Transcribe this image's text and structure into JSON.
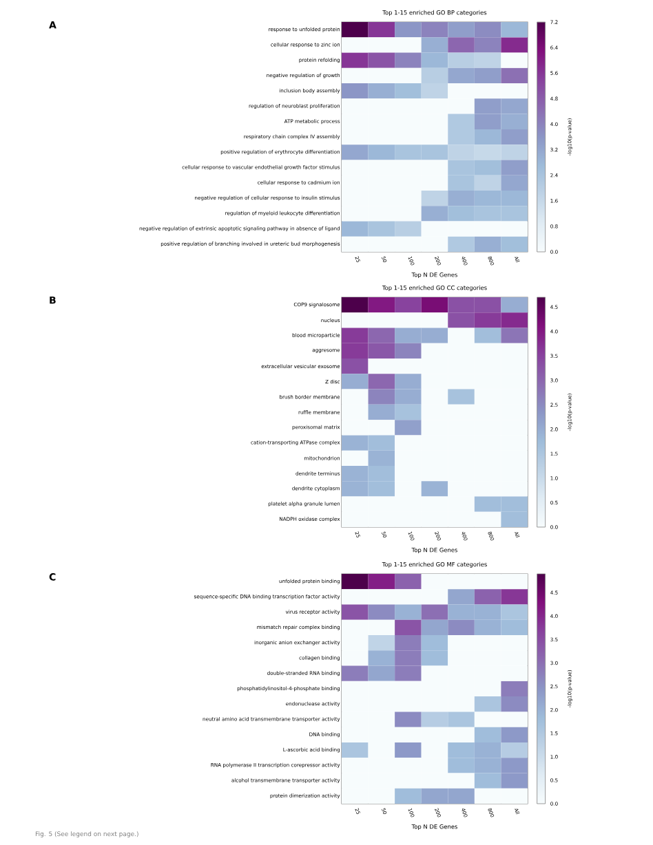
{
  "chart_data": [
    {
      "type": "heatmap",
      "title": "Top 1-15 enriched GO BP categories",
      "xlabel": "Top N DE Genes",
      "clabel": "-log10(p-value)",
      "annotations": [
        "A"
      ],
      "categories": [
        "25",
        "50",
        "100",
        "200",
        "400",
        "800",
        "All"
      ],
      "y_categories": [
        "response to unfolded protein",
        "cellular response to zinc ion",
        "protein refolding",
        "negative regulation of growth",
        "inclusion body assembly",
        "regulation of neuroblast proliferation",
        "ATP metabolic process",
        "respiratory chain complex IV assembly",
        "positive regulation of erythrocyte differentiation",
        "cellular response to vascular endothelial growth factor stimulus",
        "cellular response to cadmium ion",
        "negative regulation of cellular response to insulin stimulus",
        "regulation of myeloid leukocyte differentiation",
        "negative regulation of extrinsic apoptotic signaling pathway in absence of ligand",
        "positive regulation of branching involved in ureteric bud morphogenesis"
      ],
      "cells": [
        [
          7.2,
          5.6,
          3.6,
          4.0,
          3.4,
          3.8,
          2.8
        ],
        [
          0,
          0,
          0,
          3.0,
          4.6,
          4.0,
          5.8
        ],
        [
          5.6,
          5.0,
          4.0,
          2.8,
          2.0,
          1.8,
          0
        ],
        [
          0,
          0,
          0,
          2.0,
          3.2,
          3.4,
          4.4
        ],
        [
          3.6,
          3.0,
          2.6,
          1.8,
          0,
          0,
          0
        ],
        [
          0,
          0,
          0,
          0,
          0,
          3.4,
          3.2
        ],
        [
          0,
          0,
          0,
          0,
          2.2,
          3.4,
          3.0
        ],
        [
          0,
          0,
          0,
          0,
          2.2,
          2.8,
          3.4
        ],
        [
          3.2,
          2.8,
          2.4,
          2.4,
          1.8,
          1.6,
          1.8
        ],
        [
          0,
          0,
          0,
          0,
          2.4,
          2.6,
          3.4
        ],
        [
          0,
          0,
          0,
          0,
          2.4,
          1.8,
          3.2
        ],
        [
          0,
          0,
          0,
          1.8,
          3.0,
          2.8,
          2.8
        ],
        [
          0,
          0,
          0,
          3.0,
          2.6,
          2.4,
          2.4
        ],
        [
          2.8,
          2.4,
          2.0,
          0,
          0,
          0,
          0
        ],
        [
          0,
          0,
          0,
          0,
          2.2,
          3.0,
          2.6
        ]
      ],
      "clim": [
        0,
        7.2
      ],
      "cticks": [
        {
          "value": 0,
          "label": "0.0"
        },
        0.8,
        1.6,
        2.4,
        3.2,
        {
          "value": 4,
          "label": "4.0"
        },
        4.8,
        5.6,
        6.4,
        7.2
      ]
    },
    {
      "type": "heatmap",
      "title": "Top 1-15 enriched GO CC categories",
      "xlabel": "Top N DE Genes",
      "clabel": "-log10(p-value)",
      "annotations": [
        "B"
      ],
      "categories": [
        "25",
        "50",
        "100",
        "200",
        "400",
        "800",
        "All"
      ],
      "y_categories": [
        "COP9 signalosome",
        "nucleus",
        "blood microparticle",
        "aggresome",
        "extracellular vesicular exosome",
        "Z disc",
        "brush border membrane",
        "ruffle membrane",
        "peroxisomal matrix",
        "cation-transporting ATPase complex",
        "mitochondrion",
        "dendrite terminus",
        "dendrite cytoplasm",
        "platelet alpha granule lumen",
        "NADPH oxidase complex"
      ],
      "cells": [
        [
          4.7,
          4.0,
          3.5,
          4.2,
          3.3,
          3.3,
          2.0
        ],
        [
          0,
          0,
          0,
          0,
          3.3,
          3.6,
          3.8
        ],
        [
          3.6,
          3.0,
          2.0,
          2.0,
          0,
          1.7,
          2.8
        ],
        [
          3.6,
          3.2,
          2.6,
          0,
          0,
          0,
          0
        ],
        [
          3.3,
          0,
          0,
          0,
          0,
          0,
          0
        ],
        [
          2.0,
          3.0,
          2.0,
          0,
          0,
          0,
          0
        ],
        [
          0,
          2.6,
          2.0,
          0,
          1.6,
          0,
          0
        ],
        [
          0,
          2.0,
          1.6,
          0,
          0,
          0,
          0
        ],
        [
          0,
          0,
          2.2,
          0,
          0,
          0,
          0
        ],
        [
          1.9,
          1.7,
          0,
          0,
          0,
          0,
          0
        ],
        [
          0,
          1.9,
          0,
          0,
          0,
          0,
          0
        ],
        [
          1.9,
          1.7,
          0,
          0,
          0,
          0,
          0
        ],
        [
          1.9,
          1.7,
          0,
          1.9,
          0,
          0,
          0
        ],
        [
          0,
          0,
          0,
          0,
          0,
          1.7,
          1.7
        ],
        [
          0,
          0,
          0,
          0,
          0,
          0,
          1.7
        ]
      ],
      "clim": [
        0,
        4.7
      ],
      "cticks": [
        {
          "value": 0,
          "label": "0.0"
        },
        0.5,
        {
          "value": 1,
          "label": "1.0"
        },
        1.5,
        {
          "value": 2,
          "label": "2.0"
        },
        2.5,
        {
          "value": 3,
          "label": "3.0"
        },
        3.5,
        {
          "value": 4,
          "label": "4.0"
        },
        4.5
      ]
    },
    {
      "type": "heatmap",
      "title": "Top 1-15 enriched GO MF categories",
      "xlabel": "Top N DE Genes",
      "clabel": "-log10(p-value)",
      "annotations": [
        "C",
        "Fig. 5 (See legend on next page.)"
      ],
      "categories": [
        "25",
        "50",
        "100",
        "200",
        "400",
        "800",
        "All"
      ],
      "y_categories": [
        "unfolded protein binding",
        "sequence-specific DNA binding transcription factor activity",
        "virus receptor activity",
        "mismatch repair complex binding",
        "inorganic anion exchanger activity",
        "collagen binding",
        "double-stranded RNA binding",
        "phosphatidylinositol-4-phosphate binding",
        "endonuclease activity",
        "neutral amino acid transmembrane transporter activity",
        "DNA binding",
        "L-ascorbic acid binding",
        "RNA polymerase II transcription corepressor activity",
        "alcohol transmembrane transporter activity",
        "protein dimerization activity"
      ],
      "cells": [
        [
          4.9,
          4.1,
          3.2,
          0,
          0,
          0,
          0
        ],
        [
          0,
          0,
          0,
          0,
          2.2,
          3.2,
          3.8
        ],
        [
          3.4,
          2.6,
          2.0,
          3.0,
          2.0,
          2.0,
          1.6
        ],
        [
          0,
          0,
          3.4,
          2.2,
          2.6,
          2.0,
          1.8
        ],
        [
          0,
          1.2,
          2.8,
          1.8,
          0,
          0,
          0
        ],
        [
          0,
          2.0,
          2.8,
          1.8,
          0,
          0,
          0
        ],
        [
          2.8,
          2.2,
          2.8,
          0,
          0,
          0,
          0
        ],
        [
          0,
          0,
          0,
          0,
          0,
          0,
          2.8
        ],
        [
          0,
          0,
          0,
          0,
          0,
          1.6,
          2.6
        ],
        [
          0,
          0,
          2.6,
          1.4,
          1.6,
          0,
          0
        ],
        [
          0,
          0,
          0,
          0,
          0,
          1.8,
          2.4
        ],
        [
          1.6,
          0,
          2.4,
          0,
          1.8,
          2.0,
          1.4
        ],
        [
          0,
          0,
          0,
          0,
          1.8,
          2.0,
          2.4
        ],
        [
          0,
          0,
          0,
          0,
          0,
          1.8,
          2.4
        ],
        [
          0,
          0,
          1.8,
          2.2,
          2.2,
          0,
          0
        ]
      ],
      "clim": [
        0,
        4.9
      ],
      "cticks": [
        {
          "value": 0,
          "label": "0.0"
        },
        0.5,
        {
          "value": 1,
          "label": "1.0"
        },
        1.5,
        {
          "value": 2,
          "label": "2.0"
        },
        2.5,
        {
          "value": 3,
          "label": "3.0"
        },
        3.5,
        {
          "value": 4,
          "label": "4.0"
        },
        4.5
      ]
    }
  ]
}
